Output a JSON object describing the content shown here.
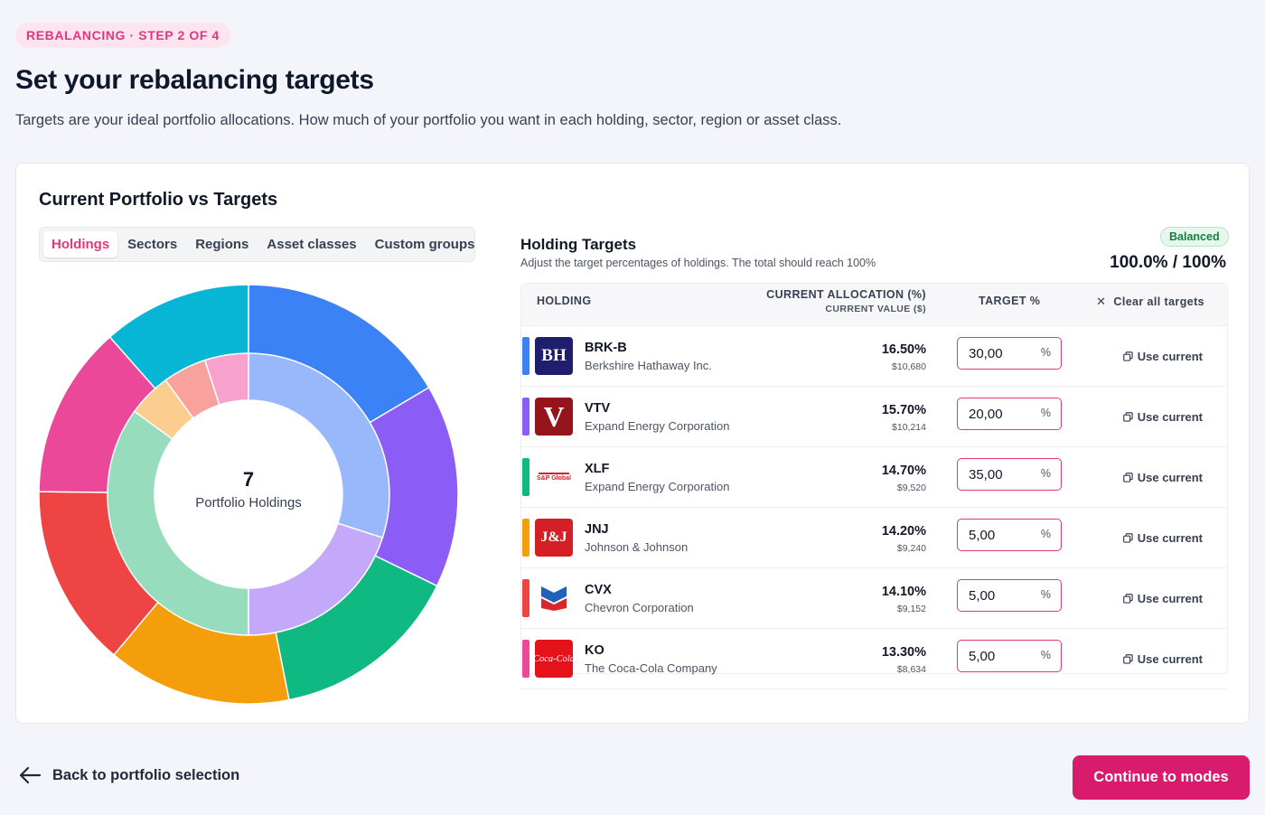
{
  "step_label": "REBALANCING · STEP 2 OF 4",
  "page_title": "Set your rebalancing targets",
  "page_subtitle": "Targets are your ideal portfolio allocations. How much of your portfolio you want in each holding, sector, region or asset class.",
  "card": {
    "title": "Current Portfolio vs Targets",
    "tabs": [
      {
        "label": "Holdings",
        "active": true
      },
      {
        "label": "Sectors",
        "active": false
      },
      {
        "label": "Regions",
        "active": false
      },
      {
        "label": "Asset classes",
        "active": false
      },
      {
        "label": "Custom groups",
        "active": false
      }
    ],
    "donut": {
      "center_value": "7",
      "center_label": "Portfolio Holdings",
      "outer_ring": [
        {
          "value": 16.5,
          "color": "#3b82f6"
        },
        {
          "value": 15.7,
          "color": "#8b5cf6"
        },
        {
          "value": 14.7,
          "color": "#10b981"
        },
        {
          "value": 14.2,
          "color": "#f59e0b"
        },
        {
          "value": 14.1,
          "color": "#ef4444"
        },
        {
          "value": 13.3,
          "color": "#ec4899"
        },
        {
          "value": 11.5,
          "color": "#06b6d4"
        }
      ],
      "inner_ring": [
        {
          "value": 30,
          "color": "#99b7fb"
        },
        {
          "value": 20,
          "color": "#c4a9fa"
        },
        {
          "value": 35,
          "color": "#96dcbd"
        },
        {
          "value": 5,
          "color": "#fbcd8e"
        },
        {
          "value": 5,
          "color": "#f8a19d"
        },
        {
          "value": 5,
          "color": "#f6a2cc"
        }
      ]
    }
  },
  "holding_targets": {
    "title": "Holding Targets",
    "subtitle": "Adjust the target percentages of holdings. The total should reach 100%",
    "status_badge": "Balanced",
    "total": "100.0% / 100%",
    "columns": {
      "holding": "HOLDING",
      "current_allocation": "CURRENT ALLOCATION (%)",
      "current_value": "CURRENT VALUE ($)",
      "target": "TARGET %",
      "clear_all": "Clear all targets"
    },
    "use_current_label": "Use current",
    "rows": [
      {
        "ticker": "BRK-B",
        "company": "Berkshire Hathaway Inc.",
        "allocation": "16.50%",
        "value": "$10,680",
        "target": "30,00",
        "color": "#3b82f6",
        "logo": "BH",
        "logo_icon": "berkshire-logo-icon"
      },
      {
        "ticker": "VTV",
        "company": "Expand Energy Corporation",
        "allocation": "15.70%",
        "value": "$10,214",
        "target": "20,00",
        "color": "#8b5cf6",
        "logo": "V",
        "logo_icon": "vanguard-logo-icon"
      },
      {
        "ticker": "XLF",
        "company": "Expand Energy Corporation",
        "allocation": "14.70%",
        "value": "$9,520",
        "target": "35,00",
        "color": "#10b981",
        "logo": "S&P Global",
        "logo_icon": "sp-global-logo-icon"
      },
      {
        "ticker": "JNJ",
        "company": "Johnson & Johnson",
        "allocation": "14.20%",
        "value": "$9,240",
        "target": "5,00",
        "color": "#f59e0b",
        "logo": "J&J",
        "logo_icon": "jnj-logo-icon"
      },
      {
        "ticker": "CVX",
        "company": "Chevron Corporation",
        "allocation": "14.10%",
        "value": "$9,152",
        "target": "5,00",
        "color": "#ef4444",
        "logo": "",
        "logo_icon": "chevron-logo-icon"
      },
      {
        "ticker": "KO",
        "company": "The Coca-Cola Company",
        "allocation": "13.30%",
        "value": "$8,634",
        "target": "5,00",
        "color": "#ec4899",
        "logo": "Coca-Cola",
        "logo_icon": "coca-cola-logo-icon"
      }
    ]
  },
  "footer": {
    "back_label": "Back to portfolio selection",
    "continue_label": "Continue to modes"
  }
}
